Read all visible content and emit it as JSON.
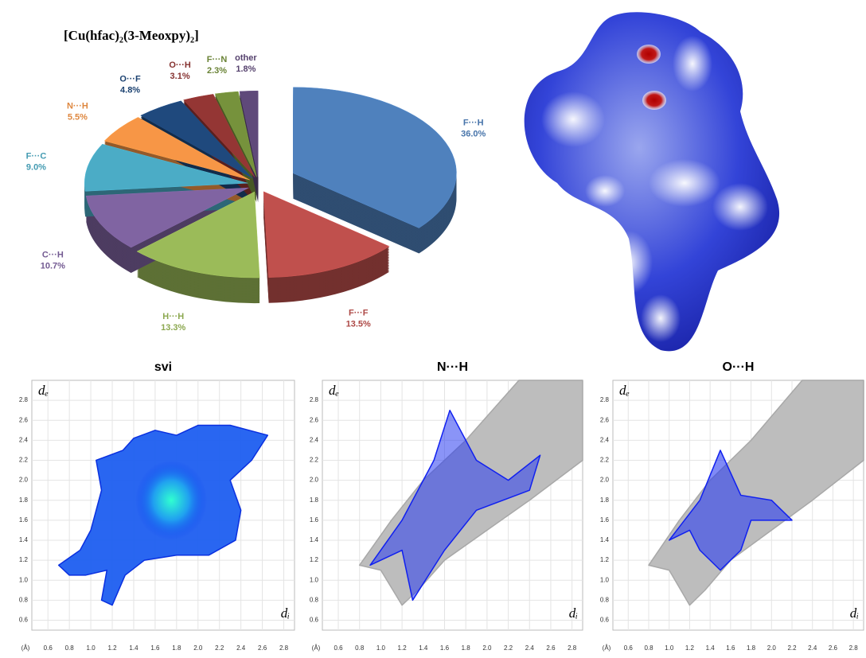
{
  "chart_data": [
    {
      "type": "pie",
      "title": "[Cu(hfac)₂(3-Meoxpy)₂]",
      "categories": [
        "F···H",
        "F···F",
        "H···H",
        "C···H",
        "F···C",
        "N···H",
        "O···F",
        "O···H",
        "F···N",
        "other"
      ],
      "values": [
        36.0,
        13.5,
        13.3,
        10.7,
        9.0,
        5.5,
        4.8,
        3.1,
        2.3,
        1.8
      ],
      "value_labels": [
        "36.0%",
        "13.5%",
        "13.3%",
        "10.7%",
        "9.0%",
        "5.5%",
        "4.8%",
        "3.1%",
        "2.3%",
        "1.8%"
      ],
      "colors": [
        "#4f81bd",
        "#c0504d",
        "#9bbb59",
        "#8064a2",
        "#4bacc6",
        "#f79646",
        "#1f497d",
        "#943634",
        "#76923c",
        "#5f497a"
      ]
    },
    {
      "type": "fingerprint",
      "title": "svi",
      "xlabel": "dᵢ",
      "ylabel": "dₑ",
      "unit": "(Å)",
      "xlim": [
        0.45,
        2.9
      ],
      "ylim": [
        0.5,
        3.0
      ],
      "grid": true,
      "xticks": [
        0.6,
        0.8,
        {
          "value": 1.0,
          "label": "1.0"
        },
        1.2,
        1.4,
        1.6,
        1.8,
        {
          "value": 2.0,
          "label": "2.0"
        },
        2.2,
        2.4,
        2.6,
        2.8
      ],
      "yticks": [
        0.6,
        0.8,
        {
          "value": 1.0,
          "label": "1.0"
        },
        1.2,
        1.4,
        1.6,
        1.8,
        {
          "value": 2.0,
          "label": "2.0"
        },
        2.2,
        2.4,
        2.6,
        2.8
      ]
    },
    {
      "type": "fingerprint",
      "title": "N···H",
      "xlabel": "dᵢ",
      "ylabel": "dₑ",
      "unit": "(Å)",
      "xlim": [
        0.45,
        2.9
      ],
      "ylim": [
        0.5,
        3.0
      ],
      "grid": true,
      "xticks": [
        0.6,
        0.8,
        {
          "value": 1.0,
          "label": "1.0"
        },
        1.2,
        1.4,
        1.6,
        1.8,
        {
          "value": 2.0,
          "label": "2.0"
        },
        2.2,
        2.4,
        2.6,
        2.8
      ],
      "yticks": [
        0.6,
        0.8,
        {
          "value": 1.0,
          "label": "1.0"
        },
        1.2,
        1.4,
        1.6,
        1.8,
        {
          "value": 2.0,
          "label": "2.0"
        },
        2.2,
        2.4,
        2.6,
        2.8
      ]
    },
    {
      "type": "fingerprint",
      "title": "O···H",
      "xlabel": "dᵢ",
      "ylabel": "dₑ",
      "unit": "(Å)",
      "xlim": [
        0.45,
        2.9
      ],
      "ylim": [
        0.5,
        3.0
      ],
      "grid": true,
      "xticks": [
        0.6,
        0.8,
        {
          "value": 1.0,
          "label": "1.0"
        },
        1.2,
        1.4,
        1.6,
        1.8,
        {
          "value": 2.0,
          "label": "2.0"
        },
        2.2,
        2.4,
        2.6,
        2.8
      ],
      "yticks": [
        0.6,
        0.8,
        {
          "value": 1.0,
          "label": "1.0"
        },
        1.2,
        1.4,
        1.6,
        1.8,
        {
          "value": 2.0,
          "label": "2.0"
        },
        2.2,
        2.4,
        2.6,
        2.8
      ]
    }
  ]
}
